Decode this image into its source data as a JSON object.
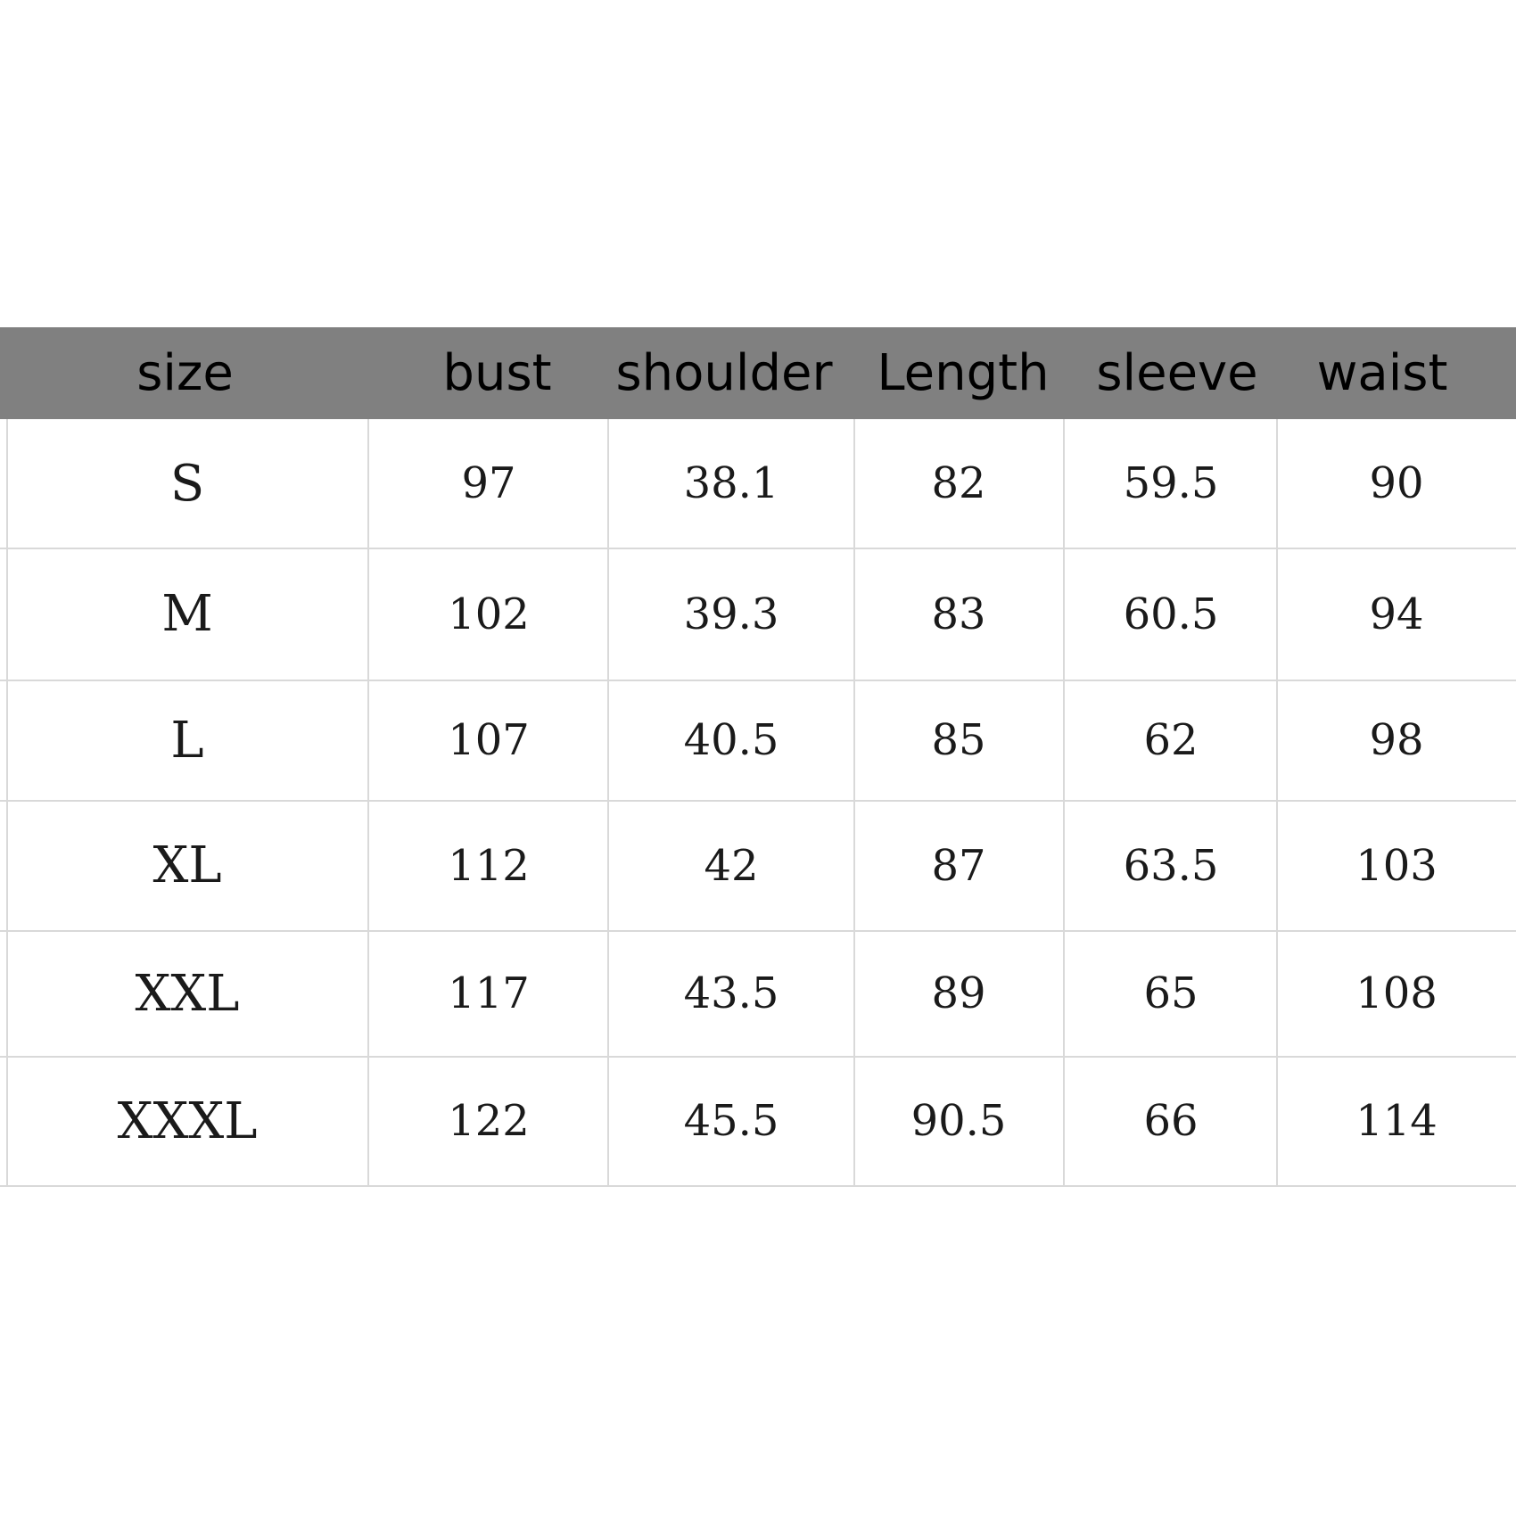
{
  "header_color": "#808080",
  "grid_color": "#d9d9d9",
  "headers": {
    "size": "size",
    "bust": "bust",
    "shoulder": "shoulder",
    "length": "Length",
    "sleeve": "sleeve",
    "waist": "waist"
  },
  "rows": [
    {
      "size": "S",
      "bust": "97",
      "shoulder": "38.1",
      "length": "82",
      "sleeve": "59.5",
      "waist": "90"
    },
    {
      "size": "M",
      "bust": "102",
      "shoulder": "39.3",
      "length": "83",
      "sleeve": "60.5",
      "waist": "94"
    },
    {
      "size": "L",
      "bust": "107",
      "shoulder": "40.5",
      "length": "85",
      "sleeve": "62",
      "waist": "98"
    },
    {
      "size": "XL",
      "bust": "112",
      "shoulder": "42",
      "length": "87",
      "sleeve": "63.5",
      "waist": "103"
    },
    {
      "size": "XXL",
      "bust": "117",
      "shoulder": "43.5",
      "length": "89",
      "sleeve": "65",
      "waist": "108"
    },
    {
      "size": "XXXL",
      "bust": "122",
      "shoulder": "45.5",
      "length": "90.5",
      "sleeve": "66",
      "waist": "114"
    }
  ]
}
